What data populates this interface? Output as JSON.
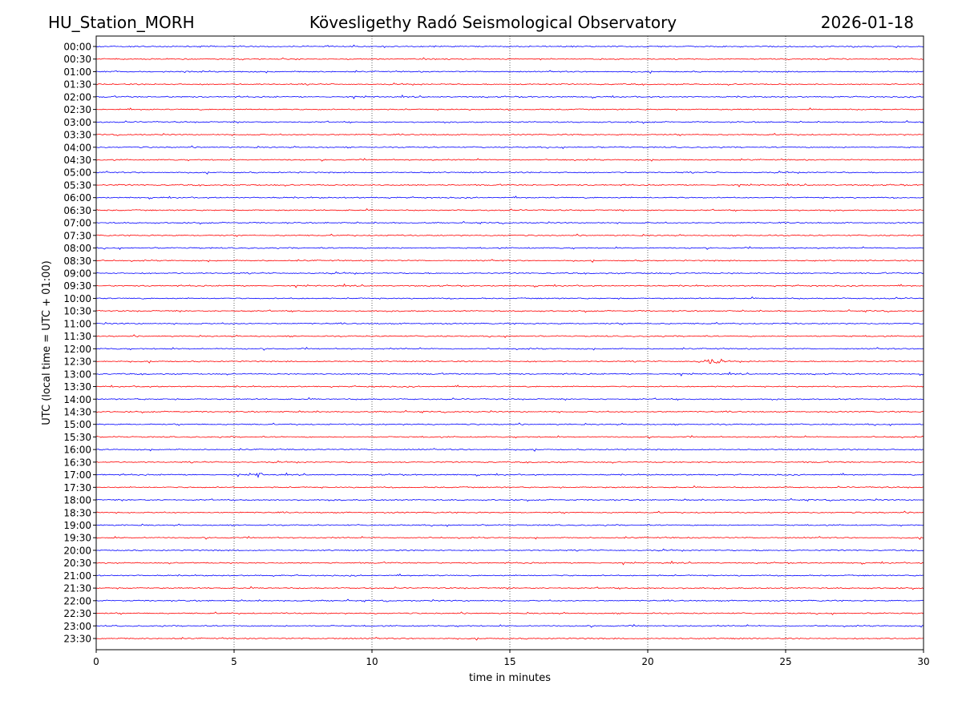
{
  "header": {
    "station": "HU_Station_MORH",
    "observatory": "Kövesligethy Radó Seismological Observatory",
    "date": "2026-01-18"
  },
  "chart_data": {
    "type": "line",
    "chart_kind": "helicorder",
    "xlabel": "time in minutes",
    "ylabel": "UTC (local time = UTC + 01:00)",
    "xlim": [
      0,
      30
    ],
    "xticks": [
      0,
      5,
      10,
      15,
      20,
      25,
      30
    ],
    "grid": "vertical dotted lines at 5-minute ticks",
    "row_labels": [
      "00:00",
      "00:30",
      "01:00",
      "01:30",
      "02:00",
      "02:30",
      "03:00",
      "03:30",
      "04:00",
      "04:30",
      "05:00",
      "05:30",
      "06:00",
      "06:30",
      "07:00",
      "07:30",
      "08:00",
      "08:30",
      "09:00",
      "09:30",
      "10:00",
      "10:30",
      "11:00",
      "11:30",
      "12:00",
      "12:30",
      "13:00",
      "13:30",
      "14:00",
      "14:30",
      "15:00",
      "15:30",
      "16:00",
      "16:30",
      "17:00",
      "17:30",
      "18:00",
      "18:30",
      "19:00",
      "19:30",
      "20:00",
      "20:30",
      "21:00",
      "21:30",
      "22:00",
      "22:30",
      "23:00",
      "23:30"
    ],
    "colors": [
      "#0000ff",
      "#ff0000"
    ],
    "notable_events": [
      {
        "row": "12:30",
        "x_start": 21.7,
        "x_end": 22.9
      },
      {
        "row": "17:00",
        "x_start": 5.5,
        "x_end": 6.1
      }
    ]
  }
}
